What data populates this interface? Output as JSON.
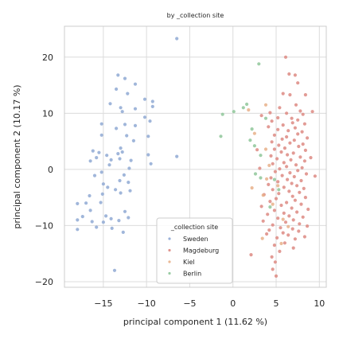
{
  "chart_data": {
    "type": "scatter",
    "title": "by _collection site",
    "xlabel": "principal component 1 (11.62 %)",
    "ylabel": "principal component 2 (10.17 %)",
    "xlim": [
      -19.5,
      10.8
    ],
    "ylim": [
      -21,
      25.5
    ],
    "xticks": [
      -15,
      -10,
      -5,
      0,
      5,
      10
    ],
    "yticks": [
      -20,
      -10,
      0,
      10,
      20
    ],
    "xtick_labels": [
      "−15",
      "−10",
      "−5",
      "0",
      "5",
      "10"
    ],
    "ytick_labels": [
      "−20",
      "−10",
      "0",
      "10",
      "20"
    ],
    "grid": true,
    "legend": {
      "title": "_collection site",
      "placement": "lower-center"
    },
    "series": [
      {
        "name": "Sweden",
        "color": "#8fa9d4",
        "points": [
          [
            -6.5,
            23.3
          ],
          [
            -13.3,
            16.8
          ],
          [
            -12.5,
            16.2
          ],
          [
            -11.3,
            15.2
          ],
          [
            -13.5,
            14.3
          ],
          [
            -12.2,
            13.5
          ],
          [
            -10.2,
            12.5
          ],
          [
            -9.3,
            12.1
          ],
          [
            -9.3,
            11.2
          ],
          [
            -14.2,
            11.7
          ],
          [
            -13.0,
            11.0
          ],
          [
            -11.3,
            10.8
          ],
          [
            -12.8,
            10.3
          ],
          [
            -10.2,
            9.3
          ],
          [
            -9.6,
            8.6
          ],
          [
            -15.2,
            8.1
          ],
          [
            -12.5,
            8.0
          ],
          [
            -11.3,
            7.8
          ],
          [
            -13.5,
            7.3
          ],
          [
            -15.2,
            6.1
          ],
          [
            -12.3,
            6.0
          ],
          [
            -9.8,
            5.9
          ],
          [
            -11.5,
            5.1
          ],
          [
            -13.0,
            3.8
          ],
          [
            -12.8,
            3.1
          ],
          [
            -16.2,
            3.3
          ],
          [
            -15.5,
            3.0
          ],
          [
            -14.6,
            2.5
          ],
          [
            -13.3,
            2.8
          ],
          [
            -15.8,
            2.1
          ],
          [
            -14.1,
            1.7
          ],
          [
            -13.1,
            1.9
          ],
          [
            -16.5,
            1.5
          ],
          [
            -9.8,
            2.6
          ],
          [
            -11.8,
            1.6
          ],
          [
            -9.5,
            1.0
          ],
          [
            -14.3,
            0.8
          ],
          [
            -12.0,
            0.2
          ],
          [
            -15.2,
            -0.5
          ],
          [
            -16.0,
            -1.1
          ],
          [
            -12.6,
            -1.0
          ],
          [
            -13.1,
            -2.0
          ],
          [
            -12.1,
            -2.3
          ],
          [
            -15.0,
            -2.6
          ],
          [
            -13.6,
            -3.6
          ],
          [
            -11.9,
            -3.8
          ],
          [
            -13.0,
            -4.2
          ],
          [
            -14.5,
            -3.2
          ],
          [
            -15.1,
            -4.4
          ],
          [
            -16.6,
            -4.7
          ],
          [
            -18.0,
            -6.1
          ],
          [
            -17.0,
            -6.0
          ],
          [
            -15.3,
            -5.9
          ],
          [
            -16.5,
            -7.3
          ],
          [
            -12.5,
            -7.5
          ],
          [
            -14.7,
            -8.3
          ],
          [
            -17.4,
            -8.4
          ],
          [
            -14.1,
            -8.8
          ],
          [
            -12.1,
            -8.6
          ],
          [
            -13.2,
            -9.1
          ],
          [
            -16.3,
            -9.3
          ],
          [
            -18.0,
            -9.0
          ],
          [
            -15.0,
            -9.4
          ],
          [
            -15.8,
            -10.3
          ],
          [
            -14.0,
            -10.5
          ],
          [
            -18.0,
            -10.7
          ],
          [
            -12.7,
            -11.2
          ],
          [
            -13.7,
            -18.0
          ],
          [
            -6.5,
            2.3
          ]
        ]
      },
      {
        "name": "Magdeburg",
        "color": "#dd8a82",
        "points": [
          [
            6.1,
            20.0
          ],
          [
            6.5,
            17.0
          ],
          [
            7.2,
            16.8
          ],
          [
            7.5,
            15.4
          ],
          [
            5.8,
            13.5
          ],
          [
            6.6,
            13.3
          ],
          [
            8.4,
            13.3
          ],
          [
            7.3,
            11.5
          ],
          [
            5.4,
            11.0
          ],
          [
            7.8,
            10.4
          ],
          [
            9.2,
            10.3
          ],
          [
            4.3,
            10.1
          ],
          [
            6.2,
            10.0
          ],
          [
            8.1,
            9.8
          ],
          [
            3.3,
            9.6
          ],
          [
            5.2,
            9.2
          ],
          [
            6.8,
            9.1
          ],
          [
            7.5,
            8.8
          ],
          [
            4.5,
            8.6
          ],
          [
            6.9,
            8.3
          ],
          [
            8.3,
            8.1
          ],
          [
            5.8,
            7.9
          ],
          [
            4.1,
            7.6
          ],
          [
            7.2,
            7.4
          ],
          [
            5.2,
            7.1
          ],
          [
            6.4,
            6.9
          ],
          [
            8.0,
            6.7
          ],
          [
            7.5,
            6.3
          ],
          [
            4.8,
            6.1
          ],
          [
            6.2,
            5.8
          ],
          [
            8.6,
            5.6
          ],
          [
            5.7,
            5.4
          ],
          [
            7.1,
            5.2
          ],
          [
            4.5,
            4.9
          ],
          [
            6.6,
            4.7
          ],
          [
            8.1,
            4.5
          ],
          [
            5.3,
            4.3
          ],
          [
            7.6,
            4.1
          ],
          [
            6.0,
            3.8
          ],
          [
            4.8,
            3.6
          ],
          [
            8.4,
            3.4
          ],
          [
            5.6,
            3.1
          ],
          [
            7.0,
            2.9
          ],
          [
            6.3,
            2.6
          ],
          [
            4.4,
            2.4
          ],
          [
            7.8,
            2.2
          ],
          [
            5.1,
            1.9
          ],
          [
            6.7,
            1.7
          ],
          [
            8.3,
            1.5
          ],
          [
            5.9,
            1.2
          ],
          [
            4.6,
            1.0
          ],
          [
            7.3,
            0.8
          ],
          [
            6.2,
            0.5
          ],
          [
            8.0,
            0.3
          ],
          [
            5.4,
            0.1
          ],
          [
            7.5,
            -0.2
          ],
          [
            4.9,
            -0.4
          ],
          [
            6.6,
            -0.6
          ],
          [
            8.5,
            -0.8
          ],
          [
            5.7,
            -1.1
          ],
          [
            7.1,
            -1.3
          ],
          [
            4.4,
            -1.5
          ],
          [
            6.3,
            -1.8
          ],
          [
            7.9,
            -2.0
          ],
          [
            5.2,
            -2.2
          ],
          [
            6.8,
            -2.5
          ],
          [
            4.1,
            -2.7
          ],
          [
            7.4,
            -2.9
          ],
          [
            5.9,
            -3.2
          ],
          [
            8.2,
            -3.4
          ],
          [
            4.6,
            -3.6
          ],
          [
            6.5,
            -3.9
          ],
          [
            7.7,
            -4.1
          ],
          [
            5.3,
            -4.3
          ],
          [
            3.6,
            -4.5
          ],
          [
            6.9,
            -4.8
          ],
          [
            8.4,
            -5.0
          ],
          [
            5.0,
            -5.2
          ],
          [
            7.2,
            -5.5
          ],
          [
            4.3,
            -5.7
          ],
          [
            6.2,
            -5.9
          ],
          [
            7.9,
            -6.2
          ],
          [
            5.6,
            -6.4
          ],
          [
            3.3,
            -6.6
          ],
          [
            6.8,
            -6.9
          ],
          [
            8.7,
            -7.1
          ],
          [
            4.8,
            -7.3
          ],
          [
            7.4,
            -7.6
          ],
          [
            5.9,
            -7.8
          ],
          [
            4.0,
            -8.0
          ],
          [
            6.5,
            -8.3
          ],
          [
            8.1,
            -8.5
          ],
          [
            5.2,
            -8.7
          ],
          [
            7.0,
            -9.0
          ],
          [
            3.5,
            -9.2
          ],
          [
            6.1,
            -9.4
          ],
          [
            7.7,
            -9.7
          ],
          [
            4.6,
            -9.9
          ],
          [
            8.6,
            -10.1
          ],
          [
            5.5,
            -10.4
          ],
          [
            6.9,
            -10.6
          ],
          [
            4.2,
            -10.8
          ],
          [
            7.6,
            -11.0
          ],
          [
            5.8,
            -11.3
          ],
          [
            3.9,
            -11.5
          ],
          [
            6.4,
            -11.7
          ],
          [
            8.3,
            -12.0
          ],
          [
            5.1,
            -12.2
          ],
          [
            7.2,
            -12.4
          ],
          [
            6.0,
            -13.1
          ],
          [
            4.8,
            -13.5
          ],
          [
            7.0,
            -14.0
          ],
          [
            5.4,
            -14.6
          ],
          [
            2.1,
            -15.2
          ],
          [
            4.5,
            -15.6
          ],
          [
            4.9,
            -16.5
          ],
          [
            4.6,
            -17.8
          ],
          [
            5.0,
            -19.0
          ],
          [
            9.0,
            2.1
          ],
          [
            9.5,
            -1.2
          ],
          [
            2.8,
            3.5
          ],
          [
            3.1,
            0.2
          ]
        ]
      },
      {
        "name": "Kiel",
        "color": "#e8b08a",
        "points": [
          [
            1.8,
            10.6
          ],
          [
            3.8,
            11.5
          ],
          [
            2.5,
            6.4
          ],
          [
            3.8,
            3.6
          ],
          [
            4.2,
            0.7
          ],
          [
            3.9,
            -1.7
          ],
          [
            5.2,
            -2.9
          ],
          [
            2.2,
            -3.3
          ],
          [
            3.5,
            -4.6
          ],
          [
            4.6,
            -6.2
          ],
          [
            5.8,
            -8.9
          ],
          [
            6.4,
            -10.2
          ],
          [
            5.6,
            -13.2
          ],
          [
            3.4,
            -12.3
          ]
        ]
      },
      {
        "name": "Berlin",
        "color": "#8fc79a",
        "points": [
          [
            3.0,
            18.8
          ],
          [
            1.6,
            11.6
          ],
          [
            1.2,
            11.0
          ],
          [
            0.1,
            10.3
          ],
          [
            -1.2,
            9.8
          ],
          [
            3.8,
            9.1
          ],
          [
            2.2,
            7.2
          ],
          [
            2.0,
            5.2
          ],
          [
            2.5,
            4.2
          ],
          [
            3.2,
            2.5
          ],
          [
            2.6,
            -0.8
          ],
          [
            3.2,
            -1.5
          ],
          [
            4.8,
            -1.8
          ],
          [
            5.3,
            -3.6
          ],
          [
            4.3,
            -6.7
          ],
          [
            -1.4,
            5.9
          ]
        ]
      }
    ]
  }
}
